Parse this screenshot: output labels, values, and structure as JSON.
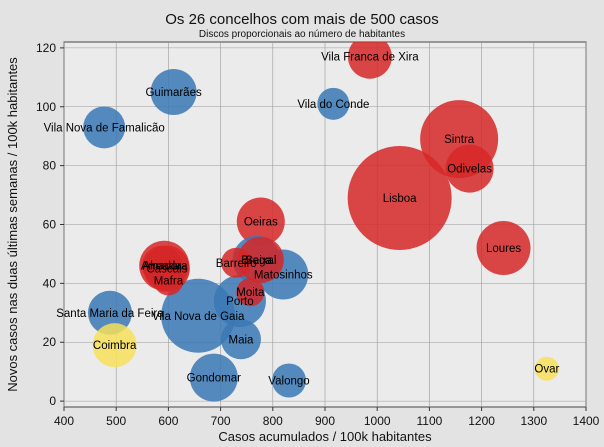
{
  "chart_data": {
    "type": "scatter",
    "title": "Os 26 concelhos com mais de 500 casos",
    "subtitle": "Discos proporcionais ao número de habitantes",
    "xlabel": "Casos acumulados / 100k habitantes",
    "ylabel": "Novos casos nas duas últimas semanas / 100k habitantes",
    "xlim": [
      400,
      1400
    ],
    "ylim": [
      -2,
      122
    ],
    "xticks": [
      "400",
      "500",
      "600",
      "700",
      "800",
      "900",
      "1000",
      "1100",
      "1200",
      "1300",
      "1400"
    ],
    "yticks": [
      "0",
      "20",
      "40",
      "60",
      "80",
      "100",
      "120"
    ],
    "grid": true,
    "colors": {
      "blue": "#3a78b5",
      "red": "#d62728",
      "yellow": "#f7e05a",
      "plot_bg": "#ebebeb",
      "grid": "#9a9a9a"
    },
    "points": [
      {
        "label": "Lisboa",
        "x": 1043,
        "y": 69,
        "size": 52,
        "color": "red"
      },
      {
        "label": "Sintra",
        "x": 1157,
        "y": 89,
        "size": 39,
        "color": "red"
      },
      {
        "label": "Vila Nova de Gaia",
        "x": 657,
        "y": 29,
        "size": 37,
        "color": "blue"
      },
      {
        "label": "Porto",
        "x": 737,
        "y": 34,
        "size": 26,
        "color": "blue"
      },
      {
        "label": "Loures",
        "x": 1242,
        "y": 52,
        "size": 27,
        "color": "red"
      },
      {
        "label": "Matosinhos",
        "x": 820,
        "y": 43,
        "size": 25,
        "color": "blue"
      },
      {
        "label": "Odivelas",
        "x": 1177,
        "y": 79,
        "size": 24,
        "color": "red"
      },
      {
        "label": "Amadora",
        "x": 592,
        "y": 46,
        "size": 25,
        "color": "red"
      },
      {
        "label": "Oeiras",
        "x": 777,
        "y": 61,
        "size": 24,
        "color": "red"
      },
      {
        "label": "Vila Franca de Xira",
        "x": 986,
        "y": 117,
        "size": 22,
        "color": "red"
      },
      {
        "label": "Gondomar",
        "x": 687,
        "y": 8,
        "size": 24,
        "color": "blue"
      },
      {
        "label": "Guimarães",
        "x": 610,
        "y": 105,
        "size": 23,
        "color": "blue"
      },
      {
        "label": "Braga",
        "x": 769,
        "y": 48,
        "size": 24,
        "color": "blue"
      },
      {
        "label": "Seixal",
        "x": 777,
        "y": 48,
        "size": 23,
        "color": "red"
      },
      {
        "label": "Cascais",
        "x": 597,
        "y": 45,
        "size": 23,
        "color": "red"
      },
      {
        "label": "Santa Maria da Feira",
        "x": 488,
        "y": 30,
        "size": 22,
        "color": "blue"
      },
      {
        "label": "Vila Nova de Famalicão",
        "x": 477,
        "y": 93,
        "size": 21,
        "color": "blue"
      },
      {
        "label": "Coimbra",
        "x": 497,
        "y": 19,
        "size": 22,
        "color": "yellow"
      },
      {
        "label": "Maia",
        "x": 739,
        "y": 21,
        "size": 20,
        "color": "blue"
      },
      {
        "label": "Almada",
        "x": 588,
        "y": 46,
        "size": 20,
        "color": "red"
      },
      {
        "label": "Barreiro",
        "x": 730,
        "y": 47,
        "size": 15,
        "color": "red"
      },
      {
        "label": "Moita",
        "x": 757,
        "y": 37,
        "size": 14,
        "color": "red"
      },
      {
        "label": "Mafra",
        "x": 600,
        "y": 41,
        "size": 15,
        "color": "red"
      },
      {
        "label": "Valongo",
        "x": 831,
        "y": 7,
        "size": 17,
        "color": "blue"
      },
      {
        "label": "Vila do Conde",
        "x": 916,
        "y": 101,
        "size": 16,
        "color": "blue"
      },
      {
        "label": "Ovar",
        "x": 1325,
        "y": 11,
        "size": 12,
        "color": "yellow"
      }
    ]
  }
}
